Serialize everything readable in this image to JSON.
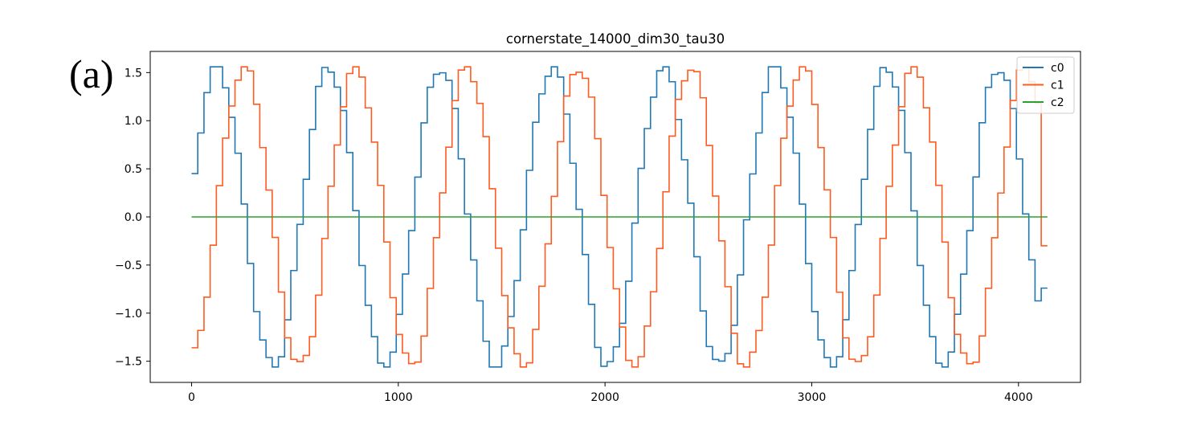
{
  "panel_label": "(a)",
  "chart_data": {
    "type": "line",
    "title": "cornerstate_14000_dim30_tau30",
    "xlabel": "",
    "ylabel": "",
    "xlim": [
      -200,
      4300
    ],
    "ylim": [
      -1.72,
      1.72
    ],
    "xticks": [
      0,
      1000,
      2000,
      3000,
      4000
    ],
    "xtick_labels": [
      "0",
      "1000",
      "2000",
      "3000",
      "4000"
    ],
    "yticks": [
      -1.5,
      -1.0,
      -0.5,
      0.0,
      0.5,
      1.0,
      1.5
    ],
    "ytick_labels": [
      "−1.5",
      "−1.0",
      "−0.5",
      "0.0",
      "0.5",
      "1.0",
      "1.5"
    ],
    "grid": false,
    "legend_position": "top-right",
    "x_range": [
      0,
      4140
    ],
    "period": 540,
    "amplitude": 1.56,
    "step": 30,
    "series": [
      {
        "name": "c0",
        "color": "#1f77b4",
        "pattern": "stepped-sine",
        "phase_deg": 16.7,
        "start": 0.45,
        "end": -0.74
      },
      {
        "name": "c1",
        "color": "#ff5a1f",
        "pattern": "stepped-sine",
        "phase_deg": -69.9,
        "start": -1.36,
        "end": -0.3
      },
      {
        "name": "c2",
        "color": "#2ca02c",
        "pattern": "constant",
        "value": 0.0
      }
    ]
  }
}
